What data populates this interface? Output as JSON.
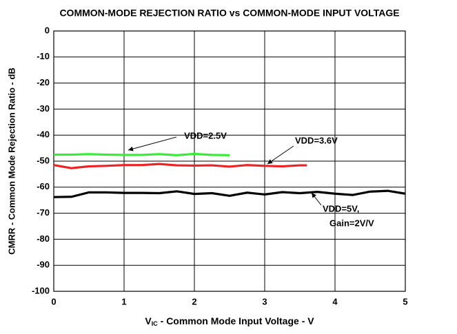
{
  "chart_data": {
    "type": "line",
    "title": "COMMON-MODE REJECTION RATIO vs COMMON-MODE INPUT VOLTAGE",
    "ylabel": "CMRR - Common Mode Rejection Ratio - dB",
    "xlabel": {
      "main": "V",
      "sub": "IC",
      "rest": " - Common Mode Input Voltage - V"
    },
    "xlim": [
      0,
      5
    ],
    "xticks": [
      0,
      1,
      2,
      3,
      4,
      5
    ],
    "ylim": [
      -100,
      0
    ],
    "yticks": [
      0,
      -10,
      -20,
      -30,
      -40,
      -50,
      -60,
      -70,
      -80,
      -90,
      -100
    ],
    "grid": true,
    "series": [
      {
        "name": "VDD=2.5V",
        "color": "#33ee33",
        "x": [
          0,
          0.25,
          0.5,
          0.75,
          1,
          1.25,
          1.5,
          1.75,
          2,
          2.25,
          2.5
        ],
        "values": [
          -47.5,
          -47.5,
          -47.3,
          -47.5,
          -47.6,
          -47.6,
          -47.3,
          -47.7,
          -47.2,
          -47.6,
          -47.7
        ]
      },
      {
        "name": "VDD=3.6V",
        "color": "#ee2222",
        "x": [
          0,
          0.25,
          0.5,
          0.75,
          1,
          1.25,
          1.5,
          1.75,
          2,
          2.25,
          2.5,
          2.75,
          3,
          3.25,
          3.5,
          3.6
        ],
        "values": [
          -51.5,
          -52.7,
          -52.0,
          -51.8,
          -51.5,
          -51.5,
          -51.1,
          -51.6,
          -51.7,
          -51.6,
          -52.1,
          -51.5,
          -51.8,
          -52.0,
          -51.6,
          -51.6
        ]
      },
      {
        "name": "VDD=5V, Gain=2V/V",
        "color": "#000000",
        "x": [
          0,
          0.25,
          0.5,
          0.75,
          1,
          1.25,
          1.5,
          1.75,
          2,
          2.25,
          2.5,
          2.75,
          3,
          3.25,
          3.5,
          3.75,
          4,
          4.25,
          4.5,
          4.75,
          5
        ],
        "values": [
          -63.8,
          -63.7,
          -62.0,
          -62.0,
          -62.2,
          -62.2,
          -62.3,
          -61.6,
          -62.6,
          -62.3,
          -63.3,
          -62.1,
          -62.8,
          -61.9,
          -62.3,
          -61.8,
          -62.5,
          -63.0,
          -61.7,
          -61.4,
          -62.5
        ]
      }
    ],
    "annotations": [
      [
        "VDD=2.5V"
      ],
      [
        "VDD=3.6V"
      ],
      [
        "VDD=5V,",
        "Gain=2V/V"
      ]
    ]
  }
}
